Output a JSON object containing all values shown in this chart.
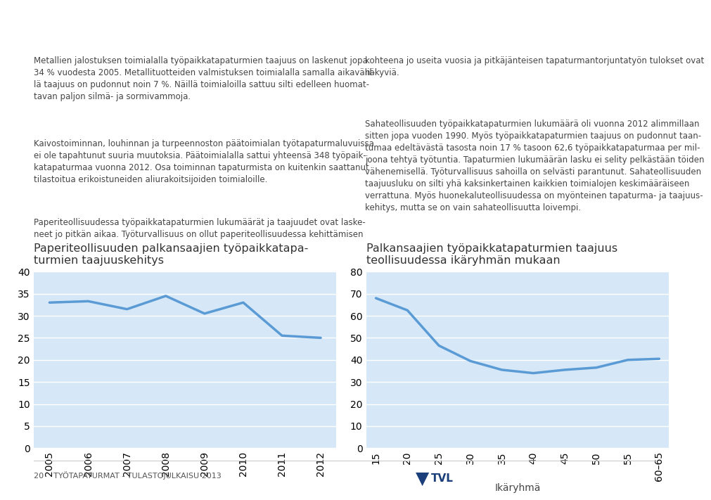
{
  "text_left_col": [
    "Metallien jalostuksen toimialalla työpaikkatapaturmien taajuus on laskenut jopa\n34 % vuodesta 2005. Metallituotteiden valmistuksen toimialalla samalla aikavälil-\nlä taajuus on pudonnut noin 7 %. Näillä toimialoilla sattuu silti edelleen huomat-\ntavan paljon silmä- ja sormivammoja.",
    "Kaivostoiminnan, louhinnan ja turpeennoston päätoimialan työtapaturmaluvuissa\nei ole tapahtunut suuria muutoksia. Päätoimialalla sattui yhteensä 348 työpaik-\nkatapaturmaa vuonna 2012. Osa toiminnan tapaturmista on kuitenkin saattanut\ntilastoitua erikoistuneiden aliurakoitsijoiden toimialoille.",
    "Paperiteollisuudessa työpaikkatapaturmien lukumäärät ja taajuudet ovat laske-\nneet jo pitkän aikaa. Työturvallisuus on ollut paperiteollisuudessa kehittämisen"
  ],
  "text_right_col": [
    "kohteena jo useita vuosia ja pitkäjänteisen tapaturmantorjuntatyön tulokset ovat\nnäkyviä.",
    "Sahateollisuuden työpaikkatapaturmien lukumäärä oli vuonna 2012 alimmillaan\nsitten jopa vuoden 1990. Myös työpaikkatapaturmien taajuus on pudonnut taan-\ntumaa edeltävästä tasosta noin 17 % tasoon 62,6 työpaikkatapaturmaa per mil-\njoona tehtyä työtuntia. Tapaturmien lukumäärän lasku ei selity pelkästään töiden\nvähenemisellä. Työturvallisuus sahoilla on selvästi parantunut. Sahateollisuuden\ntaajuusluku on silti yhä kaksinkertainen kaikkien toimialojen keskimääräiseen\nverrattuna. Myös huonekaluteollisuudessa on myönteinen tapaturma- ja taajuus-\nkehitys, mutta se on vain sahateollisuutta loivempi."
  ],
  "chart1": {
    "title": "Paperiteollisuuden palkansaajien työpaikkatapa-\nturmien taajuuskehitys",
    "x": [
      2005,
      2006,
      2007,
      2008,
      2009,
      2010,
      2011,
      2012
    ],
    "y": [
      33.0,
      33.3,
      31.5,
      34.5,
      30.5,
      33.0,
      25.5,
      25.0
    ],
    "ylim": [
      0,
      40
    ],
    "yticks": [
      0,
      5,
      10,
      15,
      20,
      25,
      30,
      35,
      40
    ],
    "line_color": "#5b9bd5",
    "line_width": 2.5,
    "bg_color": "#d6e8f7"
  },
  "chart2": {
    "title": "Palkansaajien työpaikkatapaturmien taajuus\nteollisuudessa ikäryhmän mukaan",
    "x": [
      15,
      20,
      25,
      30,
      35,
      40,
      45,
      50,
      55,
      60
    ],
    "y": [
      68.0,
      62.5,
      46.5,
      39.5,
      35.5,
      34.0,
      35.5,
      36.5,
      40.0,
      40.5
    ],
    "ylim": [
      0,
      80
    ],
    "yticks": [
      0,
      10,
      20,
      30,
      40,
      50,
      60,
      70,
      80
    ],
    "xlabel": "Ikäryhmä",
    "xtick_labels": [
      "15",
      "20",
      "25",
      "30",
      "35",
      "40",
      "45",
      "50",
      "55",
      "60–65"
    ],
    "line_color": "#5b9bd5",
    "line_width": 2.5,
    "bg_color": "#d6e8f7"
  },
  "page_bg": "#ffffff",
  "text_color": "#444444",
  "text_fontsize": 8.5,
  "title_fontsize": 11.5,
  "tick_fontsize": 10,
  "footer_left": "20    TYÖTAPATURMAT - TULASTOJULKAISU 2013",
  "footer_fontsize": 8,
  "divider_color": "#cccccc"
}
